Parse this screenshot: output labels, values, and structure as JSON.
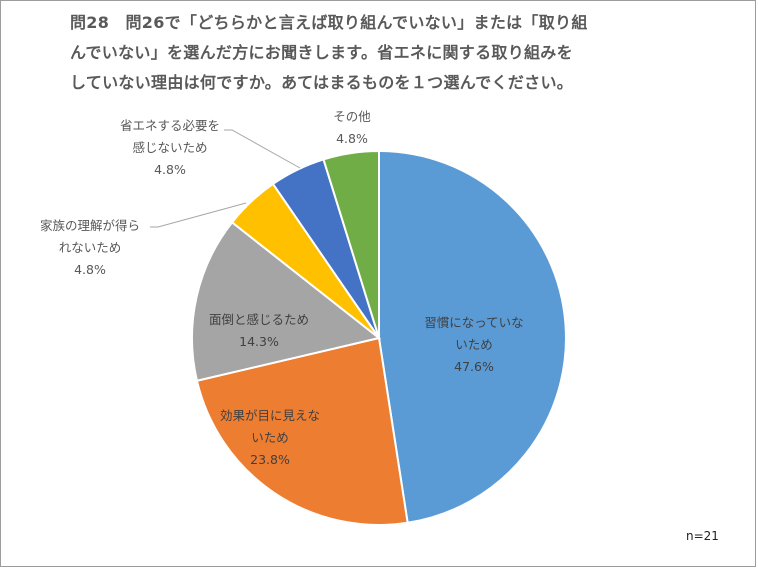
{
  "chart_data": {
    "type": "pie",
    "title_lines": [
      "問28　問26で「どちらかと言えば取り組んでいない」または「取り組",
      "んでいない」を選んだ方にお聞きします。省エネに関する取り組みを",
      "していない理由は何ですか。あてはまるものを１つ選んでください。"
    ],
    "note": "n=21",
    "slices": [
      {
        "label_lines": [
          "習慣になっていな",
          "いため"
        ],
        "percent_text": "47.6%",
        "value": 47.6,
        "color": "#5b9bd5"
      },
      {
        "label_lines": [
          "効果が目に見えな",
          "いため"
        ],
        "percent_text": "23.8%",
        "value": 23.8,
        "color": "#ed7d31"
      },
      {
        "label_lines": [
          "面倒と感じるため"
        ],
        "percent_text": "14.3%",
        "value": 14.3,
        "color": "#a5a5a5"
      },
      {
        "label_lines": [
          "家族の理解が得ら",
          "れないため"
        ],
        "percent_text": "4.8%",
        "value": 4.8,
        "color": "#ffc000"
      },
      {
        "label_lines": [
          "省エネする必要を",
          "感じないため"
        ],
        "percent_text": "4.8%",
        "value": 4.8,
        "color": "#4472c4"
      },
      {
        "label_lines": [
          "その他"
        ],
        "percent_text": "4.8%",
        "value": 4.8,
        "color": "#70ad47"
      }
    ]
  }
}
